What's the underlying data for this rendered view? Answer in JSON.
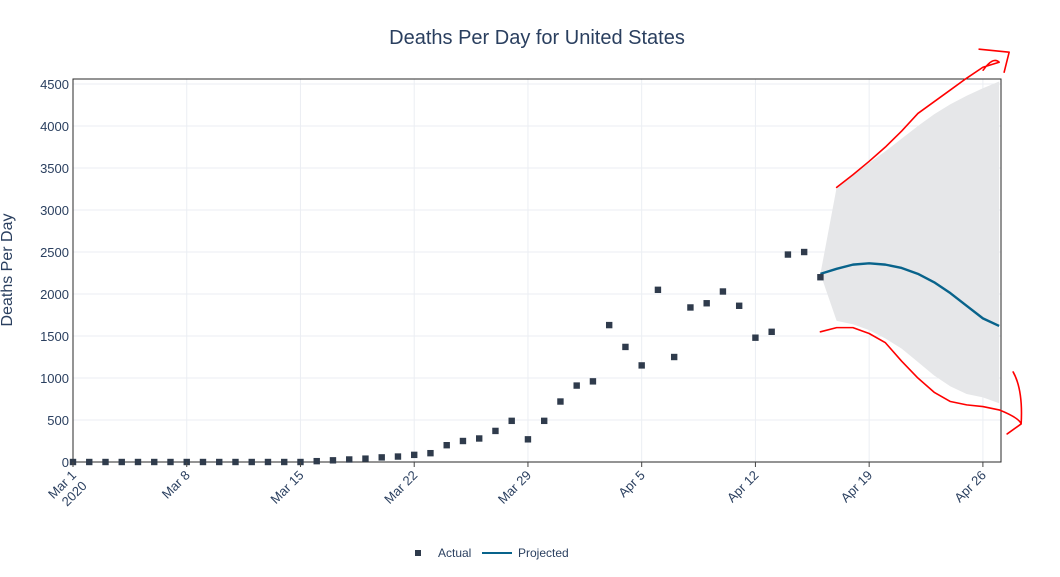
{
  "chart_data": {
    "type": "scatter",
    "title": "Deaths Per Day for United States",
    "xlabel": "",
    "ylabel": "Deaths Per Day",
    "ylim": [
      0,
      4500
    ],
    "yticks": [
      0,
      500,
      1000,
      1500,
      2000,
      2500,
      3000,
      3500,
      4000,
      4500
    ],
    "xlim": [
      "2020-03-01",
      "2020-04-27"
    ],
    "xticks": [
      {
        "date": "2020-03-01",
        "label": [
          "Mar 1",
          "2020"
        ]
      },
      {
        "date": "2020-03-08",
        "label": [
          "Mar 8"
        ]
      },
      {
        "date": "2020-03-15",
        "label": [
          "Mar 15"
        ]
      },
      {
        "date": "2020-03-22",
        "label": [
          "Mar 22"
        ]
      },
      {
        "date": "2020-03-29",
        "label": [
          "Mar 29"
        ]
      },
      {
        "date": "2020-04-05",
        "label": [
          "Apr 5"
        ]
      },
      {
        "date": "2020-04-12",
        "label": [
          "Apr 12"
        ]
      },
      {
        "date": "2020-04-19",
        "label": [
          "Apr 19"
        ]
      },
      {
        "date": "2020-04-26",
        "label": [
          "Apr 26"
        ]
      }
    ],
    "grid": true,
    "legend": "bottom",
    "series": [
      {
        "name": "Actual",
        "type": "scatter",
        "color": "#2f3b4c",
        "points": [
          [
            "2020-03-01",
            0
          ],
          [
            "2020-03-02",
            0
          ],
          [
            "2020-03-03",
            0
          ],
          [
            "2020-03-04",
            0
          ],
          [
            "2020-03-05",
            0
          ],
          [
            "2020-03-06",
            0
          ],
          [
            "2020-03-07",
            0
          ],
          [
            "2020-03-08",
            0
          ],
          [
            "2020-03-09",
            0
          ],
          [
            "2020-03-10",
            0
          ],
          [
            "2020-03-11",
            0
          ],
          [
            "2020-03-12",
            0
          ],
          [
            "2020-03-13",
            0
          ],
          [
            "2020-03-14",
            0
          ],
          [
            "2020-03-15",
            0
          ],
          [
            "2020-03-16",
            10
          ],
          [
            "2020-03-17",
            20
          ],
          [
            "2020-03-18",
            30
          ],
          [
            "2020-03-19",
            40
          ],
          [
            "2020-03-20",
            55
          ],
          [
            "2020-03-21",
            65
          ],
          [
            "2020-03-22",
            85
          ],
          [
            "2020-03-23",
            105
          ],
          [
            "2020-03-24",
            200
          ],
          [
            "2020-03-25",
            250
          ],
          [
            "2020-03-26",
            280
          ],
          [
            "2020-03-27",
            370
          ],
          [
            "2020-03-28",
            490
          ],
          [
            "2020-03-29",
            270
          ],
          [
            "2020-03-30",
            490
          ],
          [
            "2020-03-31",
            720
          ],
          [
            "2020-04-01",
            910
          ],
          [
            "2020-04-02",
            960
          ],
          [
            "2020-04-03",
            1630
          ],
          [
            "2020-04-04",
            1370
          ],
          [
            "2020-04-05",
            1150
          ],
          [
            "2020-04-06",
            2050
          ],
          [
            "2020-04-07",
            1250
          ],
          [
            "2020-04-08",
            1840
          ],
          [
            "2020-04-09",
            1890
          ],
          [
            "2020-04-10",
            2030
          ],
          [
            "2020-04-11",
            1860
          ],
          [
            "2020-04-12",
            1480
          ],
          [
            "2020-04-13",
            1550
          ],
          [
            "2020-04-14",
            2470
          ],
          [
            "2020-04-15",
            2500
          ],
          [
            "2020-04-16",
            2200
          ]
        ]
      },
      {
        "name": "Projected",
        "type": "line",
        "color": "#08638b",
        "points": [
          [
            "2020-04-16",
            2240
          ],
          [
            "2020-04-17",
            2300
          ],
          [
            "2020-04-18",
            2350
          ],
          [
            "2020-04-19",
            2365
          ],
          [
            "2020-04-20",
            2350
          ],
          [
            "2020-04-21",
            2310
          ],
          [
            "2020-04-22",
            2240
          ],
          [
            "2020-04-23",
            2140
          ],
          [
            "2020-04-24",
            2010
          ],
          [
            "2020-04-25",
            1860
          ],
          [
            "2020-04-26",
            1710
          ],
          [
            "2020-04-27",
            1620
          ]
        ]
      }
    ],
    "band": {
      "color": "#e6e7e9",
      "upper": [
        [
          "2020-04-16",
          2240
        ],
        [
          "2020-04-17",
          3270
        ],
        [
          "2020-04-18",
          3420
        ],
        [
          "2020-04-19",
          3560
        ],
        [
          "2020-04-20",
          3700
        ],
        [
          "2020-04-21",
          3850
        ],
        [
          "2020-04-22",
          4000
        ],
        [
          "2020-04-23",
          4140
        ],
        [
          "2020-04-24",
          4260
        ],
        [
          "2020-04-25",
          4360
        ],
        [
          "2020-04-26",
          4450
        ],
        [
          "2020-04-27",
          4530
        ]
      ],
      "lower": [
        [
          "2020-04-16",
          2240
        ],
        [
          "2020-04-17",
          1680
        ],
        [
          "2020-04-18",
          1640
        ],
        [
          "2020-04-19",
          1570
        ],
        [
          "2020-04-20",
          1470
        ],
        [
          "2020-04-21",
          1350
        ],
        [
          "2020-04-22",
          1190
        ],
        [
          "2020-04-23",
          1030
        ],
        [
          "2020-04-24",
          900
        ],
        [
          "2020-04-25",
          810
        ],
        [
          "2020-04-26",
          770
        ],
        [
          "2020-04-27",
          700
        ]
      ]
    },
    "annotations": [
      {
        "kind": "freehand-stroke",
        "color": "#ff0000",
        "points": [
          [
            "2020-04-17",
            3270
          ],
          [
            "2020-04-18",
            3420
          ],
          [
            "2020-04-19",
            3580
          ],
          [
            "2020-04-20",
            3750
          ],
          [
            "2020-04-21",
            3940
          ],
          [
            "2020-04-22",
            4150
          ],
          [
            "2020-04-23",
            4290
          ],
          [
            "2020-04-24",
            4430
          ],
          [
            "2020-04-25",
            4570
          ],
          [
            "2020-04-26",
            4700
          ],
          [
            "2020-04-27",
            4760
          ]
        ]
      },
      {
        "kind": "freehand-stroke",
        "color": "#ff0000",
        "points": [
          [
            "2020-04-16",
            1550
          ],
          [
            "2020-04-17",
            1600
          ],
          [
            "2020-04-18",
            1600
          ],
          [
            "2020-04-19",
            1530
          ],
          [
            "2020-04-20",
            1420
          ],
          [
            "2020-04-21",
            1200
          ],
          [
            "2020-04-22",
            1000
          ],
          [
            "2020-04-23",
            830
          ],
          [
            "2020-04-24",
            720
          ],
          [
            "2020-04-25",
            680
          ],
          [
            "2020-04-26",
            660
          ],
          [
            "2020-04-27",
            620
          ]
        ]
      }
    ]
  }
}
